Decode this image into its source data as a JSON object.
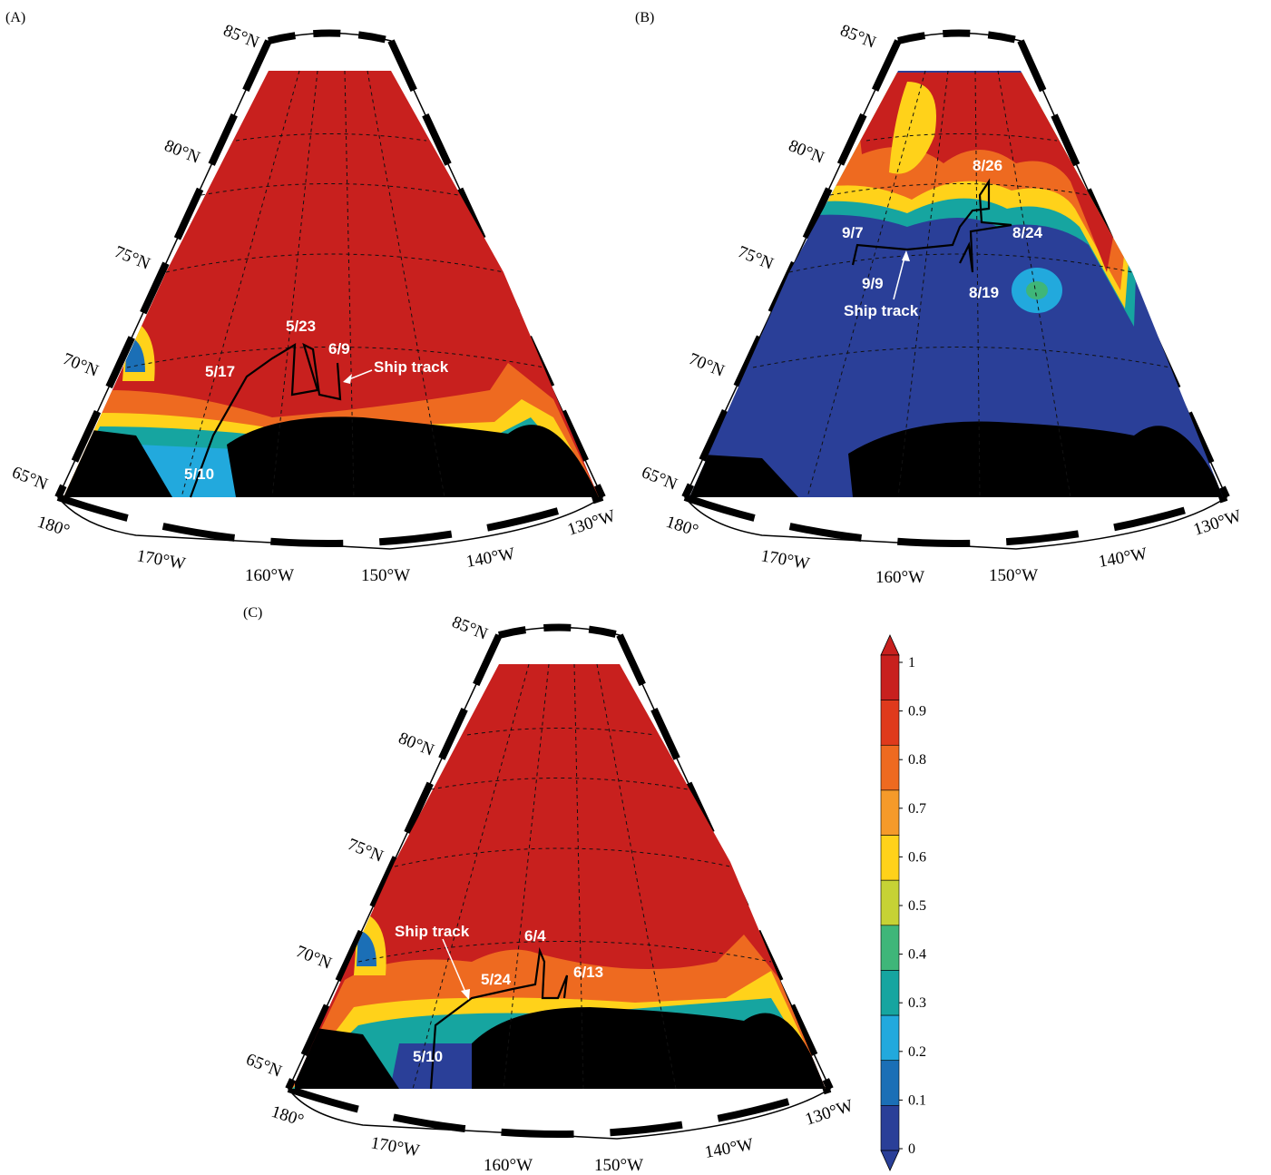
{
  "panels": [
    {
      "label": "(A)",
      "lat_labels": [
        "85°N",
        "80°N",
        "75°N",
        "70°N",
        "65°N"
      ],
      "lon_labels": [
        "180°",
        "170°W",
        "160°W",
        "150°W",
        "140°W",
        "130°W"
      ],
      "annotations": [
        "5/23",
        "6/9",
        "5/17",
        "Ship track",
        "5/10"
      ]
    },
    {
      "label": "(B)",
      "lat_labels": [
        "85°N",
        "80°N",
        "75°N",
        "70°N",
        "65°N"
      ],
      "lon_labels": [
        "180°",
        "170°W",
        "160°W",
        "150°W",
        "140°W",
        "130°W"
      ],
      "annotations": [
        "8/26",
        "9/7",
        "8/24",
        "9/9",
        "8/19",
        "Ship track"
      ]
    },
    {
      "label": "(C)",
      "lat_labels": [
        "85°N",
        "80°N",
        "75°N",
        "70°N",
        "65°N"
      ],
      "lon_labels": [
        "180°",
        "170°W",
        "160°W",
        "150°W",
        "140°W",
        "130°W"
      ],
      "annotations": [
        "Ship track",
        "6/4",
        "5/24",
        "6/13",
        "5/10"
      ]
    }
  ],
  "colorbar": {
    "ticks": [
      "1",
      "0.9",
      "0.8",
      "0.7",
      "0.6",
      "0.5",
      "0.4",
      "0.3",
      "0.2",
      "0.1",
      "0"
    ],
    "colors": [
      "#c8201e",
      "#df3a1c",
      "#ee6a20",
      "#f59a2a",
      "#ffd21a",
      "#c6d235",
      "#3fb679",
      "#16a5a0",
      "#22a9dd",
      "#1b6fb6",
      "#2a3f98"
    ]
  }
}
